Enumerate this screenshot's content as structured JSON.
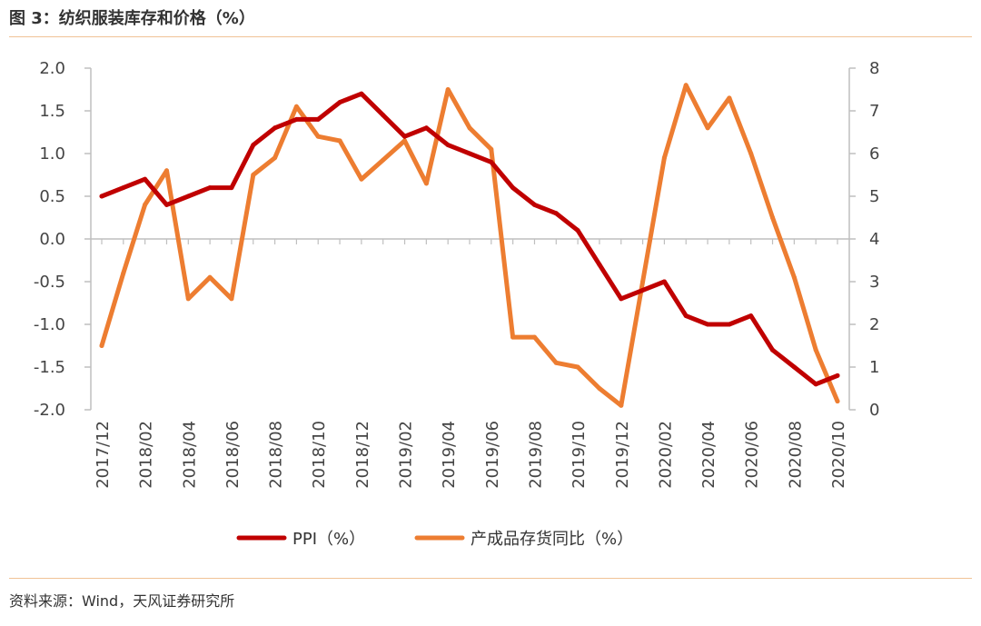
{
  "header": {
    "title": "图 3：纺织服装库存和价格（%）"
  },
  "footer": {
    "source": "资料来源：Wind，天风证券研究所"
  },
  "chart_data": {
    "type": "line",
    "title": "纺织服装库存和价格（%）",
    "categories": [
      "2017/12",
      "2018/01",
      "2018/02",
      "2018/03",
      "2018/04",
      "2018/05",
      "2018/06",
      "2018/07",
      "2018/08",
      "2018/09",
      "2018/10",
      "2018/11",
      "2018/12",
      "2019/01",
      "2019/02",
      "2019/03",
      "2019/04",
      "2019/05",
      "2019/06",
      "2019/07",
      "2019/08",
      "2019/09",
      "2019/10",
      "2019/11",
      "2019/12",
      "2020/01",
      "2020/02",
      "2020/03",
      "2020/04",
      "2020/05",
      "2020/06",
      "2020/07",
      "2020/08",
      "2020/09",
      "2020/10"
    ],
    "x_tick_labels": [
      "2017/12",
      "2018/02",
      "2018/04",
      "2018/06",
      "2018/08",
      "2018/10",
      "2018/12",
      "2019/02",
      "2019/04",
      "2019/06",
      "2019/08",
      "2019/10",
      "2019/12",
      "2020/02",
      "2020/04",
      "2020/06",
      "2020/08",
      "2020/10"
    ],
    "y_left": {
      "ylim": [
        -2.0,
        2.0
      ],
      "ticks": [
        "2.0",
        "1.5",
        "1.0",
        "0.5",
        "0.0",
        "-0.5",
        "-1.0",
        "-1.5",
        "-2.0"
      ]
    },
    "y_right": {
      "ylim": [
        0,
        8
      ],
      "ticks": [
        "8",
        "7",
        "6",
        "5",
        "4",
        "3",
        "2",
        "1",
        "0"
      ]
    },
    "series": [
      {
        "name": "PPI（%）",
        "axis": "left",
        "color": "#c00000",
        "values": [
          0.5,
          0.6,
          0.7,
          0.4,
          0.5,
          0.6,
          0.6,
          1.1,
          1.3,
          1.4,
          1.4,
          1.6,
          1.7,
          1.45,
          1.2,
          1.3,
          1.1,
          1.0,
          0.9,
          0.6,
          0.4,
          0.3,
          0.1,
          -0.3,
          -0.7,
          -0.6,
          -0.5,
          -0.9,
          -1.0,
          -1.0,
          -0.9,
          -1.3,
          -1.5,
          -1.7,
          -1.6
        ]
      },
      {
        "name": "产成品存货同比（%）",
        "axis": "right",
        "color": "#ed7d31",
        "values": [
          1.5,
          3.2,
          4.8,
          5.6,
          2.6,
          3.1,
          2.6,
          5.5,
          5.9,
          7.1,
          6.4,
          6.3,
          5.4,
          5.85,
          6.3,
          5.3,
          7.5,
          6.6,
          6.1,
          1.7,
          1.7,
          1.1,
          1.0,
          0.5,
          0.1,
          3.0,
          5.9,
          7.6,
          6.6,
          7.3,
          6.0,
          4.5,
          3.1,
          1.4,
          0.2
        ]
      }
    ],
    "grid": false,
    "legend": "bottom"
  }
}
